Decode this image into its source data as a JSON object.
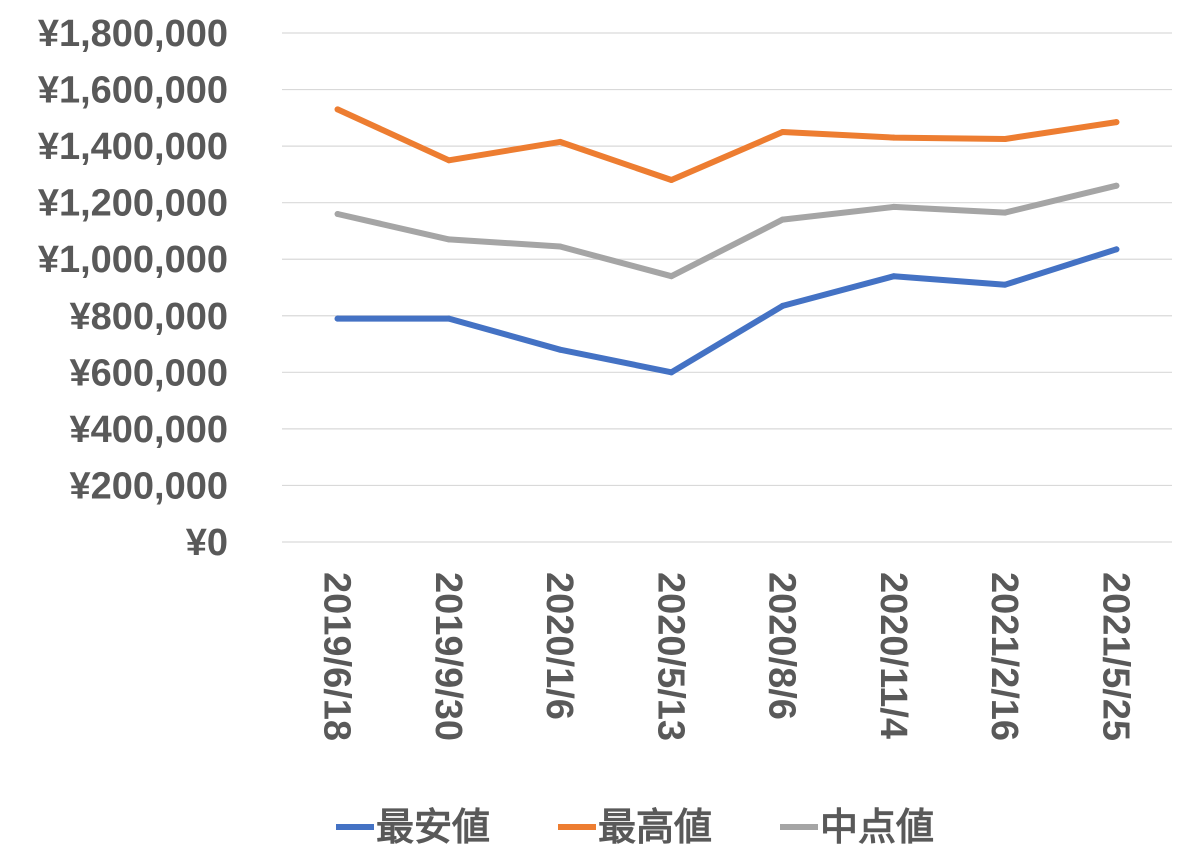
{
  "chart_data": {
    "type": "line",
    "title": "",
    "xlabel": "",
    "ylabel": "",
    "categories": [
      "2019/6/18",
      "2019/9/30",
      "2020/1/6",
      "2020/5/13",
      "2020/8/6",
      "2020/11/4",
      "2021/2/16",
      "2021/5/25"
    ],
    "ylim": [
      0,
      1800000
    ],
    "yticks": [
      0,
      200000,
      400000,
      600000,
      800000,
      1000000,
      1200000,
      1400000,
      1600000,
      1800000
    ],
    "ytick_labels": [
      "¥0",
      "¥200,000",
      "¥400,000",
      "¥600,000",
      "¥800,000",
      "¥1,000,000",
      "¥1,200,000",
      "¥1,400,000",
      "¥1,600,000",
      "¥1,800,000"
    ],
    "grid": true,
    "legend_position": "bottom",
    "series": [
      {
        "name": "最安値",
        "color": "#4472c4",
        "values": [
          790000,
          790000,
          680000,
          600000,
          835000,
          940000,
          910000,
          1035000
        ]
      },
      {
        "name": "最高値",
        "color": "#ed7d31",
        "values": [
          1530000,
          1350000,
          1415000,
          1280000,
          1450000,
          1430000,
          1425000,
          1485000
        ]
      },
      {
        "name": "中点値",
        "color": "#a5a5a5",
        "values": [
          1160000,
          1070000,
          1045000,
          940000,
          1140000,
          1185000,
          1165000,
          1260000
        ]
      }
    ]
  }
}
